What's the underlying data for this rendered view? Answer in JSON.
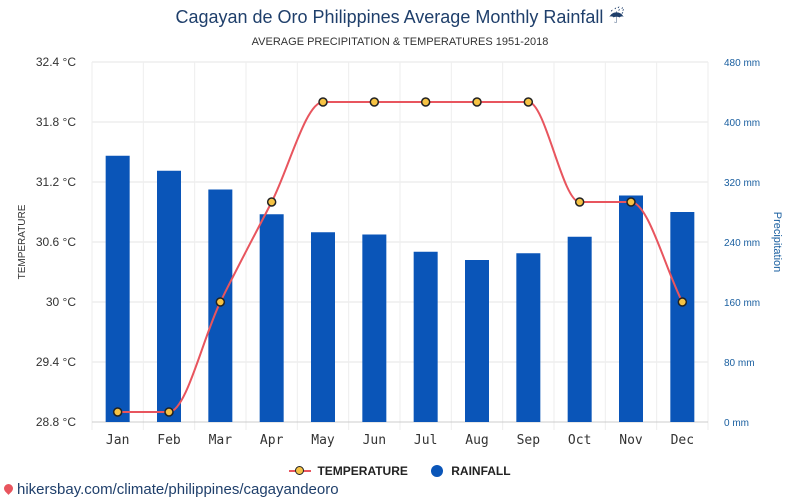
{
  "title": "Cagayan de Oro Philippines Average Monthly Rainfall ☔",
  "subtitle": "AVERAGE PRECIPITATION & TEMPERATURES 1951-2018",
  "source": "hikersbay.com/climate/philippines/cagayandeoro",
  "colors": {
    "rainfall": "#0a55b8",
    "temperature_line": "#e8555e",
    "temperature_marker": "#f6c344",
    "right_axis_text": "#1a5fa0"
  },
  "legend": {
    "position": "bottom-center",
    "temperature": "TEMPERATURE",
    "rainfall": "RAINFALL"
  },
  "chart_data": {
    "type": "bar",
    "categories": [
      "Jan",
      "Feb",
      "Mar",
      "Apr",
      "May",
      "Jun",
      "Jul",
      "Aug",
      "Sep",
      "Oct",
      "Nov",
      "Dec"
    ],
    "series": [
      {
        "name": "RAINFALL",
        "type": "bar",
        "axis": "right",
        "values": [
          355,
          335,
          310,
          277,
          253,
          250,
          227,
          216,
          225,
          247,
          302,
          280
        ]
      },
      {
        "name": "TEMPERATURE",
        "type": "line",
        "axis": "left",
        "values": [
          28.9,
          28.9,
          30.0,
          31.0,
          32.0,
          32.0,
          32.0,
          32.0,
          32.0,
          31.0,
          31.0,
          30.0
        ]
      }
    ],
    "ylabel_left": "TEMPERATURE",
    "ylabel_right": "Precipitation",
    "ylim_left": [
      28.8,
      32.4
    ],
    "ylim_right": [
      0,
      480
    ],
    "left_ticks": [
      "28.8 °C",
      "29.4 °C",
      "30 °C",
      "30.6 °C",
      "31.2 °C",
      "31.8 °C",
      "32.4 °C"
    ],
    "right_ticks": [
      "0 mm",
      "80 mm",
      "160 mm",
      "240 mm",
      "320 mm",
      "400 mm",
      "480 mm"
    ],
    "grid": true
  }
}
